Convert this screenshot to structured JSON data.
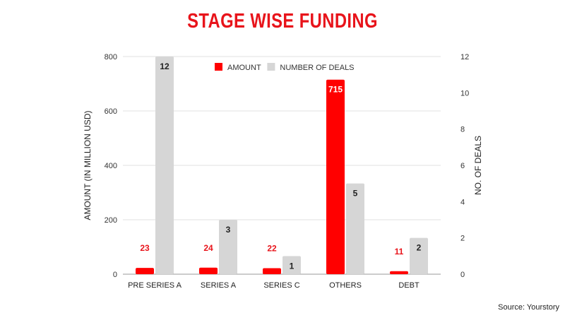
{
  "chart_data": {
    "type": "bar",
    "title": "STAGE WISE FUNDING",
    "categories": [
      "PRE SERIES A",
      "SERIES A",
      "SERIES C",
      "OTHERS",
      "DEBT"
    ],
    "series": [
      {
        "name": "AMOUNT",
        "axis": "left",
        "color": "#ff0000",
        "label_color": "#e8141b",
        "values": [
          23,
          24,
          22,
          715,
          11
        ]
      },
      {
        "name": "NUMBER OF DEALS",
        "axis": "right",
        "color": "#d6d6d6",
        "label_color": "#222222",
        "values": [
          12,
          3,
          1,
          5,
          2
        ]
      }
    ],
    "ylabel": "AMOUNT (IN MILLION USD)",
    "ylabel_right": "NO. OF DEALS",
    "ylim": [
      0,
      800
    ],
    "yticks": [
      0,
      200,
      400,
      600,
      800
    ],
    "ylim_right": [
      0,
      12
    ],
    "yticks_right": [
      0,
      2,
      4,
      6,
      8,
      10,
      12
    ],
    "grid": true,
    "legend_position": "top-center"
  },
  "source": "Source: Yourstory"
}
